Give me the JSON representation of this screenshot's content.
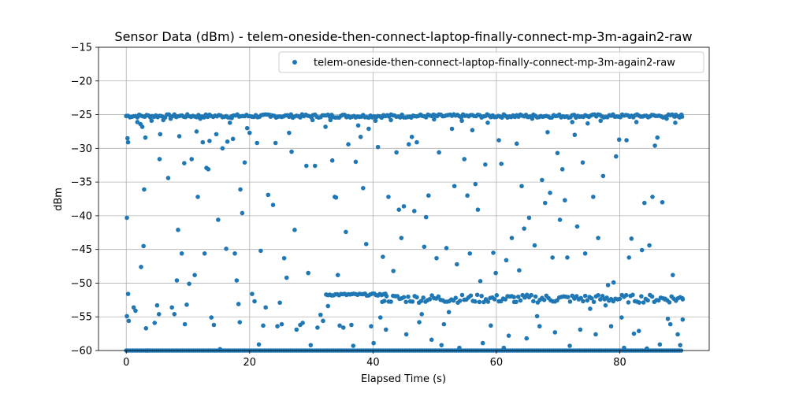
{
  "chart_data": {
    "type": "scatter",
    "title": "Sensor Data (dBm) - telem-oneside-then-connect-laptop-finally-connect-mp-3m-again2-raw",
    "xlabel": "Elapsed Time (s)",
    "ylabel": "dBm",
    "xlim": [
      -4.5,
      94.5
    ],
    "ylim": [
      -60,
      -15
    ],
    "xticks": [
      0,
      20,
      40,
      60,
      80
    ],
    "xtick_labels": [
      "0",
      "20",
      "40",
      "60",
      "80"
    ],
    "yticks": [
      -60,
      -55,
      -50,
      -45,
      -40,
      -35,
      -30,
      -25,
      -20,
      -15
    ],
    "ytick_labels": [
      "−60",
      "−55",
      "−50",
      "−45",
      "−40",
      "−35",
      "−30",
      "−25",
      "−20",
      "−15"
    ],
    "grid": true,
    "legend": {
      "position": "top-right",
      "entries": [
        "telem-oneside-then-connect-laptop-finally-connect-mp-3m-again2-raw"
      ]
    },
    "series": [
      {
        "name": "telem-oneside-then-connect-laptop-finally-connect-mp-3m-again2-raw",
        "color": "#1f77b4",
        "points": [
          [
            0,
            -25.2
          ],
          [
            0.2,
            -28.5
          ],
          [
            0.3,
            -29.1
          ],
          [
            0.1,
            -40.3
          ],
          [
            0.3,
            -51.6
          ],
          [
            0.1,
            -54.9
          ],
          [
            0.4,
            -55.6
          ],
          [
            0.1,
            -60
          ],
          [
            1.2,
            -53.6
          ],
          [
            1.5,
            -54.1
          ],
          [
            1.8,
            -26.1
          ],
          [
            2.3,
            -26.4
          ],
          [
            2.6,
            -26.8
          ],
          [
            2.4,
            -47.6
          ],
          [
            2.9,
            -36.1
          ],
          [
            3.1,
            -28.4
          ],
          [
            2.8,
            -44.5
          ],
          [
            3.2,
            -56.7
          ],
          [
            3.4,
            -60
          ],
          [
            4.1,
            -25.9
          ],
          [
            4.6,
            -55.9
          ],
          [
            5.0,
            -53.3
          ],
          [
            5.3,
            -54.6
          ],
          [
            5.4,
            -31.6
          ],
          [
            5.5,
            -27.9
          ],
          [
            6.0,
            -25.8
          ],
          [
            6.8,
            -34.4
          ],
          [
            7.2,
            -25.6
          ],
          [
            7.4,
            -53.6
          ],
          [
            7.8,
            -54.6
          ],
          [
            8.2,
            -49.6
          ],
          [
            8.4,
            -42.1
          ],
          [
            8.6,
            -28.2
          ],
          [
            9.0,
            -45.6
          ],
          [
            9.4,
            -32.2
          ],
          [
            9.5,
            -56.1
          ],
          [
            9.8,
            -53.2
          ],
          [
            10.2,
            -50.1
          ],
          [
            10.6,
            -31.6
          ],
          [
            11.1,
            -48.8
          ],
          [
            11.4,
            -27.5
          ],
          [
            11.6,
            -37.2
          ],
          [
            12.0,
            -25.6
          ],
          [
            12.4,
            -29.1
          ],
          [
            12.7,
            -45.6
          ],
          [
            13.0,
            -32.9
          ],
          [
            13.3,
            -33.1
          ],
          [
            13.5,
            -28.9
          ],
          [
            13.8,
            -55.1
          ],
          [
            14.2,
            -56.2
          ],
          [
            14.6,
            -27.9
          ],
          [
            14.9,
            -40.6
          ],
          [
            15.2,
            -59.8
          ],
          [
            15.6,
            -30.0
          ],
          [
            16.2,
            -44.9
          ],
          [
            16.4,
            -29.0
          ],
          [
            16.8,
            -26.2
          ],
          [
            17.1,
            -25.5
          ],
          [
            17.3,
            -28.6
          ],
          [
            17.6,
            -45.6
          ],
          [
            17.9,
            -49.6
          ],
          [
            18.2,
            -53.1
          ],
          [
            18.4,
            -55.8
          ],
          [
            18.5,
            -36.1
          ],
          [
            18.8,
            -39.6
          ],
          [
            19.2,
            -32.1
          ],
          [
            19.6,
            -27.0
          ],
          [
            20.0,
            -27.7
          ],
          [
            20.4,
            -51.6
          ],
          [
            20.8,
            -52.7
          ],
          [
            21.2,
            -29.2
          ],
          [
            21.5,
            -59.1
          ],
          [
            21.8,
            -45.2
          ],
          [
            22.2,
            -56.3
          ],
          [
            22.6,
            -53.6
          ],
          [
            23.0,
            -36.9
          ],
          [
            23.4,
            -25.3
          ],
          [
            23.8,
            -38.4
          ],
          [
            24.2,
            -29.2
          ],
          [
            24.5,
            -56.4
          ],
          [
            24.9,
            -52.9
          ],
          [
            25.2,
            -56.1
          ],
          [
            25.6,
            -46.3
          ],
          [
            26.0,
            -49.2
          ],
          [
            26.4,
            -27.7
          ],
          [
            26.8,
            -30.5
          ],
          [
            27.3,
            -42.1
          ],
          [
            27.6,
            -56.9
          ],
          [
            28.2,
            -56.2
          ],
          [
            28.6,
            -55.9
          ],
          [
            29.2,
            -32.6
          ],
          [
            29.5,
            -48.5
          ],
          [
            29.9,
            -59.2
          ],
          [
            30.2,
            -25.8
          ],
          [
            30.6,
            -32.6
          ],
          [
            31.0,
            -56.6
          ],
          [
            31.5,
            -54.7
          ],
          [
            31.9,
            -55.6
          ],
          [
            32.3,
            -26.8
          ],
          [
            32.7,
            -53.4
          ],
          [
            33.1,
            -25.8
          ],
          [
            33.4,
            -31.8
          ],
          [
            33.8,
            -37.2
          ],
          [
            34.0,
            -37.3
          ],
          [
            34.3,
            -48.8
          ],
          [
            34.6,
            -56.3
          ],
          [
            35.2,
            -56.6
          ],
          [
            35.6,
            -42.4
          ],
          [
            36.0,
            -29.4
          ],
          [
            36.5,
            -56.2
          ],
          [
            36.8,
            -59.3
          ],
          [
            37.2,
            -32.0
          ],
          [
            37.6,
            -26.6
          ],
          [
            38.0,
            -28.3
          ],
          [
            38.4,
            -35.9
          ],
          [
            38.9,
            -44.2
          ],
          [
            39.3,
            -27.1
          ],
          [
            39.7,
            -56.4
          ],
          [
            40.1,
            -58.9
          ],
          [
            40.4,
            -25.9
          ],
          [
            40.8,
            -29.8
          ],
          [
            41.2,
            -55.1
          ],
          [
            41.6,
            -46.1
          ],
          [
            42.1,
            -56.9
          ],
          [
            42.5,
            -37.2
          ],
          [
            42.9,
            -25.8
          ],
          [
            43.3,
            -48.2
          ],
          [
            43.8,
            -30.6
          ],
          [
            44.2,
            -39.1
          ],
          [
            44.6,
            -43.3
          ],
          [
            45.0,
            -38.6
          ],
          [
            45.4,
            -57.6
          ],
          [
            45.8,
            -29.4
          ],
          [
            46.3,
            -28.3
          ],
          [
            46.7,
            -39.3
          ],
          [
            47.1,
            -29.1
          ],
          [
            47.5,
            -55.8
          ],
          [
            47.9,
            -54.6
          ],
          [
            48.3,
            -44.6
          ],
          [
            48.6,
            -40.2
          ],
          [
            49.0,
            -37.0
          ],
          [
            49.5,
            -58.4
          ],
          [
            49.9,
            -25.7
          ],
          [
            50.3,
            -46.3
          ],
          [
            50.7,
            -30.6
          ],
          [
            51.1,
            -59.2
          ],
          [
            51.5,
            -56.1
          ],
          [
            51.9,
            -44.8
          ],
          [
            52.3,
            -54.3
          ],
          [
            52.8,
            -27.1
          ],
          [
            53.2,
            -35.6
          ],
          [
            53.6,
            -47.2
          ],
          [
            54.0,
            -59.6
          ],
          [
            54.4,
            -25.9
          ],
          [
            54.8,
            -31.6
          ],
          [
            55.3,
            -37.0
          ],
          [
            55.7,
            -45.6
          ],
          [
            56.1,
            -27.3
          ],
          [
            56.6,
            -35.3
          ],
          [
            57.0,
            -39.1
          ],
          [
            57.4,
            -49.7
          ],
          [
            57.8,
            -58.9
          ],
          [
            58.2,
            -32.4
          ],
          [
            58.6,
            -26.2
          ],
          [
            59.1,
            -56.3
          ],
          [
            59.5,
            -45.5
          ],
          [
            59.9,
            -48.5
          ],
          [
            60.4,
            -28.8
          ],
          [
            60.8,
            -32.3
          ],
          [
            61.2,
            -59.6
          ],
          [
            61.6,
            -46.6
          ],
          [
            62.0,
            -57.8
          ],
          [
            62.5,
            -43.3
          ],
          [
            62.9,
            -52.8
          ],
          [
            63.3,
            -29.3
          ],
          [
            63.7,
            -48.1
          ],
          [
            64.1,
            -35.6
          ],
          [
            64.5,
            -41.9
          ],
          [
            64.9,
            -58.2
          ],
          [
            65.3,
            -40.3
          ],
          [
            65.8,
            -25.6
          ],
          [
            66.2,
            -44.4
          ],
          [
            66.6,
            -54.9
          ],
          [
            67.0,
            -56.4
          ],
          [
            67.4,
            -34.7
          ],
          [
            67.9,
            -38.1
          ],
          [
            68.3,
            -27.6
          ],
          [
            68.7,
            -36.6
          ],
          [
            69.1,
            -46.2
          ],
          [
            69.5,
            -57.3
          ],
          [
            69.9,
            -30.7
          ],
          [
            70.3,
            -40.6
          ],
          [
            70.7,
            -33.1
          ],
          [
            71.1,
            -37.7
          ],
          [
            71.5,
            -46.2
          ],
          [
            71.9,
            -59.3
          ],
          [
            72.3,
            -26.1
          ],
          [
            72.7,
            -28.0
          ],
          [
            73.1,
            -41.6
          ],
          [
            73.6,
            -56.9
          ],
          [
            74.0,
            -32.1
          ],
          [
            74.4,
            -45.6
          ],
          [
            74.8,
            -26.3
          ],
          [
            75.2,
            -53.8
          ],
          [
            75.7,
            -37.2
          ],
          [
            76.1,
            -57.6
          ],
          [
            76.5,
            -43.3
          ],
          [
            76.9,
            -25.9
          ],
          [
            77.3,
            -34.1
          ],
          [
            77.7,
            -53.3
          ],
          [
            78.1,
            -50.3
          ],
          [
            78.6,
            -56.4
          ],
          [
            79.0,
            -49.9
          ],
          [
            79.4,
            -31.2
          ],
          [
            79.9,
            -28.7
          ],
          [
            80.3,
            -55.1
          ],
          [
            80.7,
            -59.6
          ],
          [
            81.1,
            -28.8
          ],
          [
            81.5,
            -46.2
          ],
          [
            81.9,
            -43.4
          ],
          [
            82.3,
            -57.5
          ],
          [
            82.7,
            -26.1
          ],
          [
            83.1,
            -57.1
          ],
          [
            83.6,
            -45.1
          ],
          [
            84.0,
            -38.1
          ],
          [
            84.4,
            -59.7
          ],
          [
            84.8,
            -44.4
          ],
          [
            85.3,
            -37.2
          ],
          [
            85.7,
            -29.6
          ],
          [
            86.1,
            -28.4
          ],
          [
            86.5,
            -59.1
          ],
          [
            86.9,
            -38.0
          ],
          [
            87.3,
            -52.4
          ],
          [
            87.8,
            -55.3
          ],
          [
            88.2,
            -56.1
          ],
          [
            88.6,
            -48.8
          ],
          [
            89.0,
            -26.2
          ],
          [
            89.4,
            -57.6
          ],
          [
            89.8,
            -59.2
          ],
          [
            90.2,
            -52.4
          ],
          [
            90.1,
            -25.3
          ],
          [
            90.2,
            -55.4
          ],
          [
            87.6,
            -25.6
          ],
          [
            88.9,
            -25.3
          ]
        ],
        "bands": [
          {
            "x_start": 0,
            "x_end": 90.2,
            "step": 0.3,
            "y": -25.2,
            "jitter": 0.25
          },
          {
            "x_start": 0,
            "x_end": 90.2,
            "step": 0.35,
            "y": -60.0,
            "jitter": 0
          },
          {
            "x_start": 32.4,
            "x_end": 42.0,
            "step": 0.3,
            "y": -51.7,
            "jitter": 0.15
          },
          {
            "x_start": 41.5,
            "x_end": 90.2,
            "step": 0.35,
            "y": -52.3,
            "jitter": 0.6
          }
        ]
      }
    ]
  }
}
